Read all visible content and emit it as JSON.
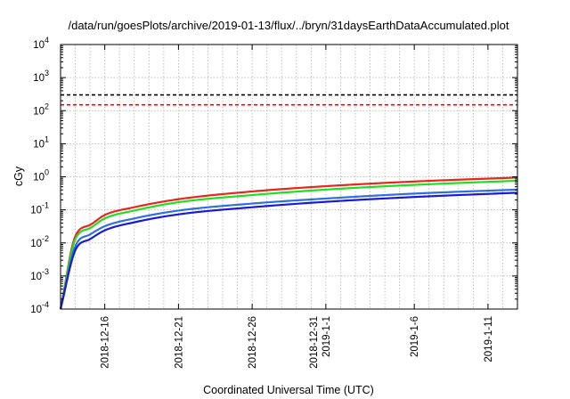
{
  "chart_data": {
    "type": "line",
    "title": "/data/run/goesPlots/archive/2019-01-13/flux/../bryn/31daysEarthDataAccumulated.plot",
    "xlabel": "Coordinated Universal Time (UTC)",
    "ylabel": "cGy",
    "yscale": "log",
    "ylim": [
      0.0001,
      10000
    ],
    "xlim": [
      "2018-12-13",
      "2019-01-13"
    ],
    "grid": true,
    "y_ticks": [
      {
        "base": "10",
        "exp": "-4"
      },
      {
        "base": "10",
        "exp": "-3"
      },
      {
        "base": "10",
        "exp": "-2"
      },
      {
        "base": "10",
        "exp": "-1"
      },
      {
        "base": "10",
        "exp": "0"
      },
      {
        "base": "10",
        "exp": "1"
      },
      {
        "base": "10",
        "exp": "2"
      },
      {
        "base": "10",
        "exp": "3"
      },
      {
        "base": "10",
        "exp": "4"
      }
    ],
    "x_ticks": [
      {
        "date": "2018-12-16",
        "lines": [
          "2018-12-16"
        ]
      },
      {
        "date": "2018-12-21",
        "lines": [
          "2018-12-21"
        ]
      },
      {
        "date": "2018-12-26",
        "lines": [
          "2018-12-26"
        ]
      },
      {
        "date": "2018-12-31",
        "lines": [
          "2018-12-31",
          "2019-1-1"
        ]
      },
      {
        "date": "2019-01-06",
        "lines": [
          "2019-1-6"
        ]
      },
      {
        "date": "2019-01-11",
        "lines": [
          "2019-1-11"
        ]
      }
    ],
    "reference_lines": [
      {
        "value": 300,
        "color": "#000000",
        "style": "dashed"
      },
      {
        "value": 150,
        "color": "#ff0000",
        "style": "dashed"
      }
    ],
    "series": [
      {
        "color": "#e8261c",
        "x": [
          "2018-12-13",
          "2018-12-14",
          "2018-12-15",
          "2018-12-16",
          "2018-12-18",
          "2018-12-21",
          "2018-12-26",
          "2018-12-31",
          "2019-01-06",
          "2019-01-13"
        ],
        "values": [
          0.0001,
          0.016,
          0.035,
          0.07,
          0.12,
          0.21,
          0.36,
          0.52,
          0.72,
          0.95
        ]
      },
      {
        "color": "#22dd22",
        "x": [
          "2018-12-13",
          "2018-12-14",
          "2018-12-15",
          "2018-12-16",
          "2018-12-18",
          "2018-12-21",
          "2018-12-26",
          "2018-12-31",
          "2019-01-06",
          "2019-01-13"
        ],
        "values": [
          0.0001,
          0.013,
          0.028,
          0.055,
          0.095,
          0.17,
          0.28,
          0.41,
          0.57,
          0.76
        ]
      },
      {
        "color": "#2f6fe0",
        "x": [
          "2018-12-13",
          "2018-12-14",
          "2018-12-15",
          "2018-12-16",
          "2018-12-18",
          "2018-12-21",
          "2018-12-26",
          "2018-12-31",
          "2019-01-06",
          "2019-01-13"
        ],
        "values": [
          0.0001,
          0.008,
          0.018,
          0.032,
          0.055,
          0.095,
          0.155,
          0.22,
          0.31,
          0.41
        ]
      },
      {
        "color": "#1a1ad6",
        "x": [
          "2018-12-13",
          "2018-12-14",
          "2018-12-15",
          "2018-12-16",
          "2018-12-18",
          "2018-12-21",
          "2018-12-26",
          "2018-12-31",
          "2019-01-06",
          "2019-01-13"
        ],
        "values": [
          0.0001,
          0.006,
          0.013,
          0.024,
          0.042,
          0.073,
          0.12,
          0.175,
          0.245,
          0.33
        ]
      }
    ]
  }
}
